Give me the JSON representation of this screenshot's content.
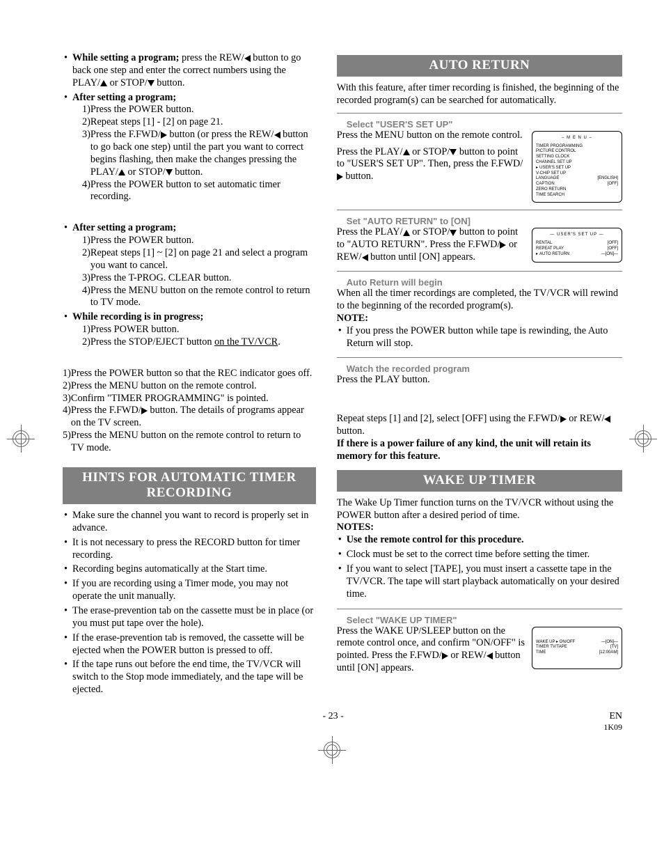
{
  "left": {
    "group1_items": [
      {
        "lead": "While setting a program;",
        "tail": " press the REW/{L} button to go back one step and enter the correct numbers using the PLAY/{U} or STOP/{D} button."
      },
      {
        "lead": "After setting a program;",
        "list": [
          "Press the POWER button.",
          "Repeat steps [1] - [2] on page 21.",
          "Press the F.FWD/{R} button (or press the REW/{L} button to go back one step) until the part you want to correct begins flashing, then make the changes pressing the PLAY/{U} or STOP/{D} button.",
          "Press the POWER button to set automatic timer recording."
        ]
      }
    ],
    "group2_items": [
      {
        "lead": "After setting a program;",
        "list": [
          "Press the POWER button.",
          "Repeat steps [1] ~ [2] on page 21 and select a program you want to cancel.",
          "Press the T-PROG. CLEAR button.",
          "Press the MENU button on the remote control to return to TV mode."
        ]
      },
      {
        "lead": "While recording is in progress;",
        "list_plain": [
          "Press POWER button.",
          {
            "text": "Press the STOP/EJECT button ",
            "u": "on the TV/VCR",
            "after": "."
          }
        ]
      }
    ],
    "group3_list": [
      "Press the POWER button so that the REC indicator goes off.",
      "Press the MENU button on the remote control.",
      "Confirm \"TIMER PROGRAMMING\" is pointed.",
      "Press the F.FWD/{R} button. The details of programs appear on the TV screen.",
      "Press the MENU button on the remote control to return to TV mode."
    ],
    "hints_title": "HINTS FOR AUTOMATIC TIMER RECORDING",
    "hints": [
      "Make sure the channel you want to record is properly set in advance.",
      "It is not necessary to press the RECORD button for timer recording.",
      "Recording begins automatically at the Start time.",
      "If you are recording using a Timer mode, you may not operate the unit manually.",
      "The erase-prevention tab on the cassette must be in place (or you must put tape over the hole).",
      "If the erase-prevention tab is removed, the cassette will be ejected when the POWER button is pressed to off.",
      "If the tape runs out before the end time, the TV/VCR will switch to the Stop mode immediately, and the tape will be ejected."
    ]
  },
  "right": {
    "auto_return_title": "AUTO RETURN",
    "auto_return_intro": "With this feature, after timer recording is finished, the beginning of the recorded program(s) can be searched for automatically.",
    "step1": {
      "hdr": "Select \"USER'S SET UP\"",
      "text": "Press the MENU button on the remote control.\nPress the PLAY/{U} or STOP/{D} button to point to \"USER'S SET UP\". Then, press the F.FWD/{R} button.",
      "menu_title": "– M E N U –",
      "menu_rows": [
        {
          "l": "TIMER PROGRAMMING"
        },
        {
          "l": "PICTURE CONTROL"
        },
        {
          "l": "SETTING CLOCK"
        },
        {
          "l": "CHANNEL SET UP"
        },
        {
          "l": "USER'S SET UP",
          "ptr": true
        },
        {
          "l": "V-CHIP SET UP"
        },
        {
          "l": "LANGUAGE",
          "r": "[ENGLISH]"
        },
        {
          "l": "CAPTION",
          "r": "[OFF]"
        },
        {
          "l": "ZERO RETURN"
        },
        {
          "l": "TIME SEARCH"
        }
      ]
    },
    "step2": {
      "hdr": "Set \"AUTO RETURN\" to [ON]",
      "text": "Press the PLAY/{U} or STOP/{D} button to point to \"AUTO RETURN\". Press the F.FWD/{R} or REW/{L} button until [ON] appears.",
      "menu_title": "— USER'S SET UP —",
      "menu_rows": [
        {
          "l": "RENTAL",
          "r": "[OFF]"
        },
        {
          "l": "REPEAT PLAY",
          "r": "[OFF]"
        },
        {
          "l": "AUTO RETURN",
          "r": "—[ON]—",
          "ptr": true
        }
      ]
    },
    "step3": {
      "hdr": "Auto Return will begin",
      "text": "When all the timer recordings are completed, the TV/VCR will rewind to the beginning of the recorded program(s)."
    },
    "note_label": "NOTE:",
    "note_text": "If you press the POWER button while tape is rewinding, the Auto Return will stop.",
    "step4": {
      "hdr": "Watch the recorded program",
      "text": "Press the PLAY button."
    },
    "cancel_text": "Repeat steps [1] and [2], select [OFF] using the F.FWD/{R} or REW/{L} button.",
    "cancel_bold": "If there is a power failure of any kind, the unit will retain its memory for this feature.",
    "wake_title": "WAKE UP TIMER",
    "wake_intro": "The Wake Up Timer function turns on the TV/VCR without using the POWER button after a desired period of time.",
    "notes_label": "NOTES:",
    "wake_notes": [
      {
        "b": true,
        "t": "Use the remote control for this procedure."
      },
      {
        "t": "Clock must be set to the correct time before setting the timer."
      },
      {
        "t": "If you want to select [TAPE], you must insert a cassette tape in the TV/VCR. The tape will start playback automatically on your desired time."
      }
    ],
    "step5": {
      "hdr": "Select \"WAKE UP TIMER\"",
      "text": "Press the WAKE UP/SLEEP button on the remote control once, and confirm \"ON/OFF\" is pointed. Press the F.FWD/{R} or REW/{L} button until [ON] appears.",
      "menu_rows": [
        {
          "l": "WAKE UP ▸ ON/OFF",
          "r": "—[ON]—"
        },
        {
          "l": "TIMER      TV/TAPE",
          "r": "[TV]"
        },
        {
          "l": "              TIME",
          "r": "[12:00AM]"
        }
      ]
    }
  },
  "footer": {
    "page": "- 23 -",
    "lang": "EN",
    "code": "1K09"
  }
}
